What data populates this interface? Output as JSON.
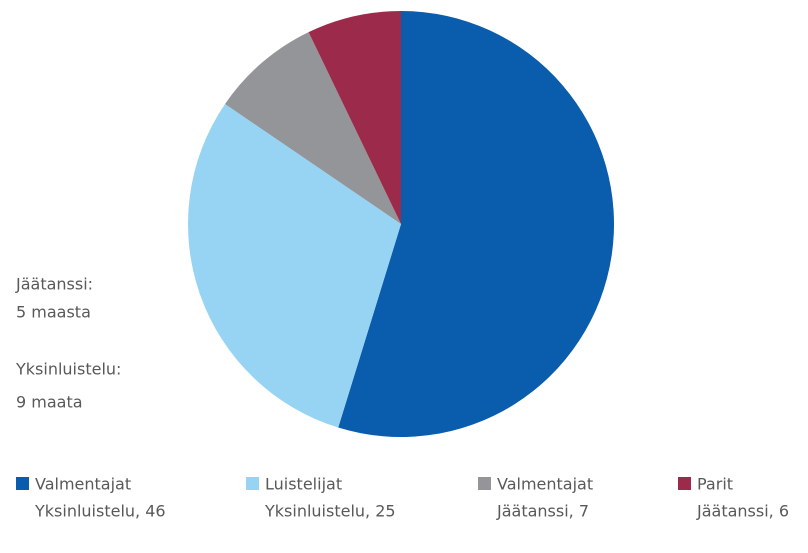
{
  "chart_data": {
    "type": "pie",
    "categories": [
      "Valmentajat",
      "Luistelijat",
      "Valmentajat",
      "Parit"
    ],
    "values": [
      46,
      25,
      7,
      6
    ],
    "value_labels": [
      "Yksinluistelu, 46",
      "Yksinluistelu, 25",
      "Jäätanssi, 7",
      "Jäätanssi, 6"
    ],
    "colors": [
      "#0a5cad",
      "#97d4f4",
      "#939598",
      "#9c2a4b"
    ],
    "annotations": [
      [
        "Jäätanssi:",
        "5 maasta"
      ],
      [
        "Yksinluistelu:",
        "9 maata"
      ]
    ],
    "legend": "bottom"
  }
}
